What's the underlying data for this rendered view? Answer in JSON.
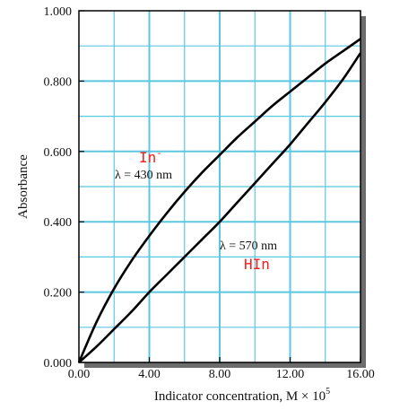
{
  "chart_data": {
    "type": "line",
    "xlabel": "Indicator concentration, M × 10",
    "xlabel_exponent": "5",
    "ylabel": "Absorbance",
    "xlim": [
      0,
      16
    ],
    "ylim": [
      0,
      1
    ],
    "x_ticks": [
      {
        "value": 0,
        "label": "0.00"
      },
      {
        "value": 4,
        "label": "4.00"
      },
      {
        "value": 8,
        "label": "8.00"
      },
      {
        "value": 12,
        "label": "12.00"
      },
      {
        "value": 16,
        "label": "16.00"
      }
    ],
    "y_ticks": [
      {
        "value": 0,
        "label": "0.000"
      },
      {
        "value": 0.2,
        "label": "0.200"
      },
      {
        "value": 0.4,
        "label": "0.400"
      },
      {
        "value": 0.6,
        "label": "0.600"
      },
      {
        "value": 0.8,
        "label": "0.800"
      },
      {
        "value": 1.0,
        "label": "1.000"
      }
    ],
    "grid": true,
    "grid_color": "#5bc8e0",
    "line_color": "#000000",
    "species_color": "#ff1a1a",
    "series": [
      {
        "x": [
          0,
          1,
          2,
          3,
          4,
          5,
          6,
          7,
          8,
          9,
          10,
          11,
          12,
          13,
          14,
          15,
          16
        ],
        "y": [
          0,
          0.115,
          0.21,
          0.29,
          0.36,
          0.425,
          0.485,
          0.54,
          0.59,
          0.64,
          0.685,
          0.73,
          0.77,
          0.81,
          0.85,
          0.885,
          0.92
        ]
      },
      {
        "x": [
          0,
          1,
          2,
          3,
          4,
          5,
          6,
          7,
          8,
          9,
          10,
          11,
          12,
          13,
          14,
          15,
          16
        ],
        "y": [
          0,
          0.045,
          0.095,
          0.145,
          0.2,
          0.25,
          0.3,
          0.35,
          0.4,
          0.455,
          0.51,
          0.565,
          0.62,
          0.68,
          0.74,
          0.805,
          0.88
        ]
      }
    ],
    "annotations": [
      {
        "species": "In",
        "charge": "-",
        "wavelength": "λ = 430 nm",
        "at": [
          6.1,
          0.64
        ]
      },
      {
        "species": "HIn",
        "wavelength": "λ = 570 nm",
        "at": [
          11.7,
          0.33
        ]
      }
    ]
  }
}
